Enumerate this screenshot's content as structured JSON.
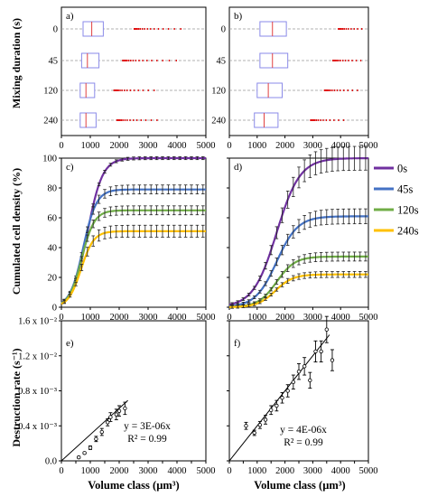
{
  "chart_data": {
    "colors": {
      "0s": "#7030a0",
      "45s": "#4472c4",
      "120s": "#70ad47",
      "240s": "#ffc000"
    },
    "legend": [
      "0s",
      "45s",
      "120s",
      "240s"
    ],
    "top": {
      "ylabel": "Mixing duration (s)",
      "categories": [
        "0",
        "45",
        "120",
        "240"
      ],
      "xticks": [
        "0",
        "1000",
        "2000",
        "3000",
        "4000",
        "5000"
      ],
      "xlim": [
        0,
        5000
      ],
      "panels": [
        {
          "label": "a)",
          "boxes": [
            {
              "q1": 750,
              "median": 1050,
              "q3": 1450,
              "outlier_start": 2500,
              "outlier_end": 4300
            },
            {
              "q1": 700,
              "median": 900,
              "q3": 1300,
              "outlier_start": 2100,
              "outlier_end": 4000
            },
            {
              "q1": 650,
              "median": 850,
              "q3": 1150,
              "outlier_start": 1800,
              "outlier_end": 3300
            },
            {
              "q1": 650,
              "median": 850,
              "q3": 1200,
              "outlier_start": 1900,
              "outlier_end": 3400
            }
          ]
        },
        {
          "label": "b)",
          "boxes": [
            {
              "q1": 1100,
              "median": 1550,
              "q3": 2050,
              "outlier_start": 3900,
              "outlier_end": 4900
            },
            {
              "q1": 1100,
              "median": 1550,
              "q3": 2100,
              "outlier_start": 3700,
              "outlier_end": 4800
            },
            {
              "q1": 1000,
              "median": 1400,
              "q3": 1900,
              "outlier_start": 3400,
              "outlier_end": 4600
            },
            {
              "q1": 900,
              "median": 1250,
              "q3": 1750,
              "outlier_start": 2900,
              "outlier_end": 4200
            }
          ]
        }
      ]
    },
    "middle": {
      "type": "line",
      "ylabel": "Cumulated cell density (%)",
      "yticks": [
        "0",
        "20",
        "40",
        "60",
        "80",
        "100"
      ],
      "xticks": [
        "0",
        "1000",
        "2000",
        "3000",
        "4000",
        "5000"
      ],
      "xlim": [
        0,
        5000
      ],
      "ylim": [
        0,
        100
      ],
      "panels": [
        {
          "label": "c)",
          "series": [
            {
              "name": "0s",
              "plateau": 100,
              "midpoint": 900,
              "steepness": 260,
              "err": 0.5
            },
            {
              "name": "45s",
              "plateau": 79,
              "midpoint": 750,
              "steepness": 230,
              "err": 1.5
            },
            {
              "name": "120s",
              "plateau": 65,
              "midpoint": 700,
              "steepness": 220,
              "err": 1.5
            },
            {
              "name": "240s",
              "plateau": 51,
              "midpoint": 680,
              "steepness": 220,
              "err": 2.0
            }
          ]
        },
        {
          "label": "d)",
          "series": [
            {
              "name": "0s",
              "plateau": 100,
              "midpoint": 1700,
              "steepness": 420,
              "err": 4.0
            },
            {
              "name": "45s",
              "plateau": 61,
              "midpoint": 1700,
              "steepness": 380,
              "err": 2.5
            },
            {
              "name": "120s",
              "plateau": 34,
              "midpoint": 1700,
              "steepness": 330,
              "err": 1.5
            },
            {
              "name": "240s",
              "plateau": 22,
              "midpoint": 1650,
              "steepness": 320,
              "err": 1.0
            }
          ]
        }
      ]
    },
    "bottom": {
      "type": "scatter",
      "ylabel": "Destruction rate (s⁻¹)",
      "xlabel": "Volume class (µm³)",
      "yticks": [
        "0.0",
        "0.4 x 10⁻³",
        "0.8 x 10⁻³",
        "1.2 x 10⁻²",
        "1.6 x 10⁻²"
      ],
      "xticks": [
        "0",
        "500",
        "1000",
        "1500",
        "2000",
        "2500",
        "3000",
        "3500",
        "4000",
        "4500",
        "5000"
      ],
      "xlim": [
        0,
        5000
      ],
      "ylim": [
        0,
        0.016
      ],
      "panels": [
        {
          "label": "e)",
          "equation": "y = 3E-06x",
          "r2": "R² = 0.99",
          "slope": 3e-06,
          "fit_range": [
            0,
            2300
          ],
          "points": [
            {
              "x": 600,
              "y": 0.0004,
              "err": 0.0001
            },
            {
              "x": 800,
              "y": 0.0009,
              "err": 0.0001
            },
            {
              "x": 1000,
              "y": 0.0015,
              "err": 0.0002
            },
            {
              "x": 1200,
              "y": 0.0025,
              "err": 0.0003
            },
            {
              "x": 1400,
              "y": 0.0033,
              "err": 0.0004
            },
            {
              "x": 1600,
              "y": 0.0044,
              "err": 0.0004
            },
            {
              "x": 1700,
              "y": 0.005,
              "err": 0.0005
            },
            {
              "x": 1900,
              "y": 0.0053,
              "err": 0.0006
            },
            {
              "x": 2000,
              "y": 0.0057,
              "err": 0.0006
            },
            {
              "x": 2200,
              "y": 0.006,
              "err": 0.0007
            }
          ]
        },
        {
          "label": "f)",
          "equation": "y = 4E-06x",
          "r2": "R² = 0.99",
          "slope": 4e-06,
          "fit_range": [
            0,
            3600
          ],
          "points": [
            {
              "x": 600,
              "y": 0.004,
              "err": 0.0004
            },
            {
              "x": 900,
              "y": 0.0032,
              "err": 0.0003
            },
            {
              "x": 1100,
              "y": 0.0041,
              "err": 0.0004
            },
            {
              "x": 1300,
              "y": 0.0047,
              "err": 0.0005
            },
            {
              "x": 1500,
              "y": 0.0058,
              "err": 0.0005
            },
            {
              "x": 1700,
              "y": 0.0063,
              "err": 0.0006
            },
            {
              "x": 1900,
              "y": 0.0072,
              "err": 0.0006
            },
            {
              "x": 2100,
              "y": 0.008,
              "err": 0.0007
            },
            {
              "x": 2300,
              "y": 0.009,
              "err": 0.0008
            },
            {
              "x": 2500,
              "y": 0.0102,
              "err": 0.0009
            },
            {
              "x": 2700,
              "y": 0.0108,
              "err": 0.001
            },
            {
              "x": 2900,
              "y": 0.0092,
              "err": 0.0009
            },
            {
              "x": 3100,
              "y": 0.0125,
              "err": 0.0012
            },
            {
              "x": 3300,
              "y": 0.0125,
              "err": 0.0012
            },
            {
              "x": 3500,
              "y": 0.015,
              "err": 0.0015
            },
            {
              "x": 3700,
              "y": 0.0115,
              "err": 0.0012
            }
          ]
        }
      ]
    }
  }
}
